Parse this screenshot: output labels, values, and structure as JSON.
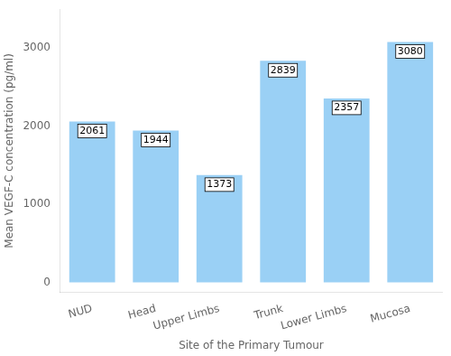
{
  "chart_data": {
    "type": "bar",
    "categories": [
      "NUD",
      "Head",
      "Upper Limbs",
      "Trunk",
      "Lower Limbs",
      "Mucosa"
    ],
    "values": [
      2061,
      1944,
      1373,
      2839,
      2357,
      3080
    ],
    "xlabel": "Site of the Primary Tumour",
    "ylabel": "Mean VEGF-C concentration (pg/ml)",
    "ylim": [
      -130,
      3500
    ],
    "yticks": [
      0,
      1000,
      2000,
      3000
    ],
    "grid": false,
    "data_labels": true
  }
}
